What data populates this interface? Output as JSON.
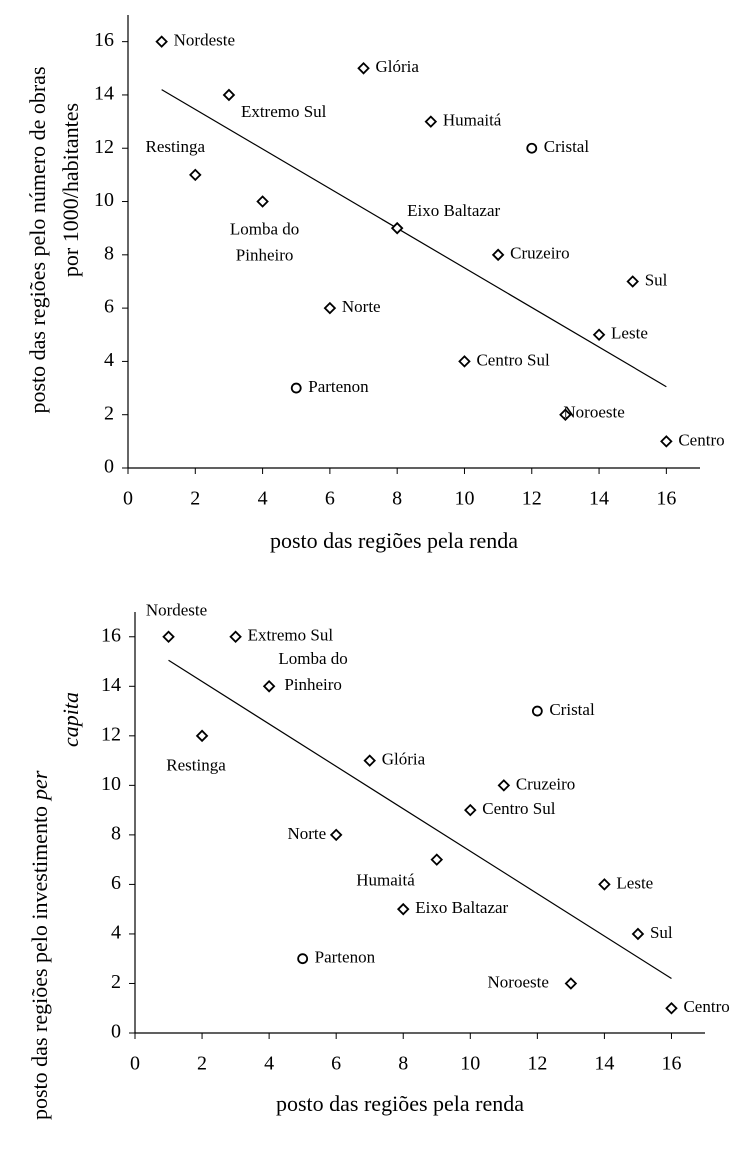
{
  "chart_data": [
    {
      "type": "scatter",
      "xlabel": "posto das regiões pela renda",
      "ylabel": [
        "posto das regiões pelo  número de obras",
        "por 1000/habitantes"
      ],
      "ylabel_italic": [
        false,
        false
      ],
      "ylabel_line": [
        0,
        1
      ],
      "xlim": [
        0,
        17
      ],
      "ylim": [
        0,
        17
      ],
      "xticks": [
        0,
        2,
        4,
        6,
        8,
        10,
        12,
        14,
        16
      ],
      "yticks": [
        0,
        2,
        4,
        6,
        8,
        10,
        12,
        14,
        16
      ],
      "points": {
        "x": [
          1,
          7,
          3,
          9,
          12,
          2,
          4,
          8,
          11,
          15,
          6,
          14,
          10,
          5,
          13,
          16
        ],
        "y": [
          16,
          15,
          14,
          13,
          12,
          11,
          10,
          9,
          8,
          7,
          6,
          5,
          4,
          3,
          2,
          1
        ],
        "labels": [
          "Nordeste",
          "Glória",
          "Extremo Sul",
          "Humaitá",
          "Cristal",
          "Restinga",
          [
            "Lomba do",
            "Pinheiro"
          ],
          "Eixo Baltazar",
          "Cruzeiro",
          "Sul",
          "Norte",
          "Leste",
          "Centro Sul",
          "Partenon",
          "Noroeste",
          "Centro"
        ],
        "markers": [
          "diamond",
          "diamond",
          "diamond",
          "diamond",
          "circle",
          "diamond",
          "diamond",
          "diamond",
          "diamond",
          "diamond",
          "diamond",
          "diamond",
          "diamond",
          "circle",
          "diamond",
          "diamond"
        ]
      },
      "trendline": {
        "x": [
          1,
          16
        ],
        "y": [
          14.2,
          3.05
        ]
      }
    },
    {
      "type": "scatter",
      "xlabel": "posto das regiões pela renda",
      "ylabel": [
        "posto das regiões pelo investimento",
        "per",
        "capita"
      ],
      "ylabel_italic": [
        false,
        true,
        true
      ],
      "ylabel_line": [
        0,
        0,
        1
      ],
      "xlim": [
        0,
        17
      ],
      "ylim": [
        0,
        17
      ],
      "xticks": [
        0,
        2,
        4,
        6,
        8,
        10,
        12,
        14,
        16
      ],
      "yticks": [
        0,
        2,
        4,
        6,
        8,
        10,
        12,
        14,
        16
      ],
      "points": {
        "x": [
          1,
          3,
          4,
          2,
          12,
          7,
          11,
          10,
          6,
          9,
          14,
          8,
          15,
          5,
          13,
          16
        ],
        "y": [
          16,
          16,
          14,
          12,
          13,
          11,
          10,
          9,
          8,
          7,
          6,
          5,
          4,
          3,
          2,
          1
        ],
        "labels": [
          "Nordeste",
          "Extremo Sul",
          [
            "Lomba do",
            "Pinheiro"
          ],
          "Restinga",
          "Cristal",
          "Glória",
          "Cruzeiro",
          "Centro Sul",
          "Norte",
          "Humaitá",
          "Leste",
          "Eixo Baltazar",
          "Sul",
          "Partenon",
          "Noroeste",
          "Centro"
        ],
        "markers": [
          "diamond",
          "diamond",
          "diamond",
          "diamond",
          "circle",
          "diamond",
          "diamond",
          "diamond",
          "diamond",
          "diamond",
          "diamond",
          "diamond",
          "diamond",
          "circle",
          "diamond",
          "diamond"
        ]
      },
      "trendline": {
        "x": [
          1,
          16
        ],
        "y": [
          15.05,
          2.2
        ]
      }
    }
  ]
}
